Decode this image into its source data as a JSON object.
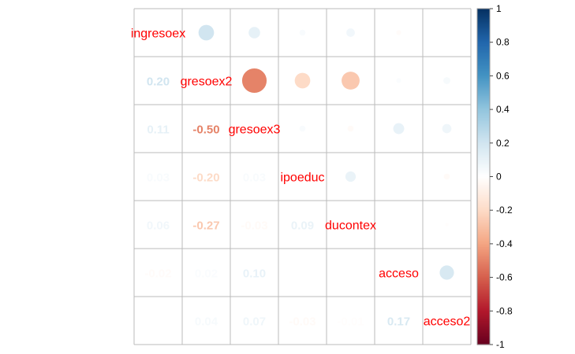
{
  "chart_data": {
    "type": "heatmap",
    "style": "corrplot-mixed",
    "variables": [
      "ingresoex",
      "gresoex2",
      "gresoex3",
      "ipoeduc",
      "ducontex",
      "acceso",
      "acceso2"
    ],
    "matrix": [
      [
        1.0,
        0.2,
        0.11,
        0.03,
        0.06,
        -0.02,
        0.0
      ],
      [
        0.2,
        1.0,
        -0.5,
        -0.2,
        -0.27,
        0.02,
        0.04
      ],
      [
        0.11,
        -0.5,
        1.0,
        0.03,
        -0.03,
        0.1,
        0.07
      ],
      [
        0.03,
        -0.2,
        0.03,
        1.0,
        0.09,
        0.0,
        -0.03
      ],
      [
        0.06,
        -0.27,
        -0.03,
        0.09,
        1.0,
        0.0,
        -0.01
      ],
      [
        -0.02,
        0.02,
        0.1,
        0.0,
        0.0,
        1.0,
        0.17
      ],
      [
        0.0,
        0.04,
        0.07,
        -0.03,
        -0.01,
        0.17,
        1.0
      ]
    ],
    "lower_labels": [
      [
        "",
        "",
        "",
        "",
        "",
        "",
        ""
      ],
      [
        "0.20",
        "",
        "",
        "",
        "",
        "",
        ""
      ],
      [
        "0.11",
        "-0.50",
        "",
        "",
        "",
        "",
        ""
      ],
      [
        "0.03",
        "-0.20",
        "0.03",
        "",
        "",
        "",
        ""
      ],
      [
        "0.06",
        "-0.27",
        "-0.03",
        "0.09",
        "",
        "",
        ""
      ],
      [
        "-0.02",
        "0.02",
        "0.10",
        "0.00",
        "",
        "",
        ""
      ],
      [
        "0.00",
        "0.04",
        "0.07",
        "-0.03",
        "-0.01",
        "0.17",
        ""
      ]
    ],
    "colorbar": {
      "range": [
        -1,
        1
      ],
      "ticks": [
        "1",
        "0.8",
        "0.6",
        "0.4",
        "0.2",
        "0",
        "-0.2",
        "-0.4",
        "-0.6",
        "-0.8",
        "-1"
      ],
      "colors": [
        "#053061",
        "#2166ac",
        "#4393c3",
        "#92c5de",
        "#d1e5f0",
        "#ffffff",
        "#fddbc7",
        "#f4a582",
        "#d6604d",
        "#b2182b",
        "#67001f"
      ]
    },
    "label_color": "#ff0000",
    "grid_color": "#bbbbbb"
  }
}
